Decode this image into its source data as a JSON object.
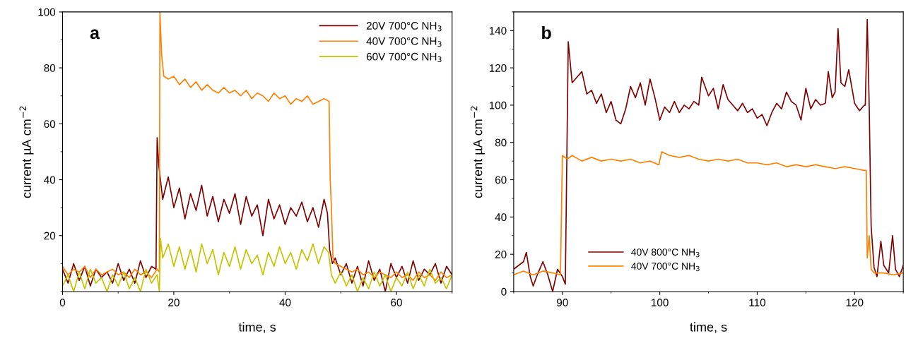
{
  "chart_data": [
    {
      "type": "line",
      "xlabel": "time, s",
      "ylabel": "current µA cm$^{−2}$",
      "annotations": [
        "a"
      ],
      "xlim": [
        0,
        70
      ],
      "xticks": [
        0,
        20,
        40,
        60
      ],
      "ylim": [
        0,
        100
      ],
      "yticks": [
        20,
        40,
        60,
        80,
        100
      ],
      "grid": false,
      "legend": "top right",
      "marker": "none",
      "line_style": "solid",
      "series": [
        {
          "name": "20V 700°C NH$_{3}$",
          "color": "#800000",
          "x": [
            0,
            1,
            2,
            3,
            4,
            5,
            6,
            7,
            8,
            9,
            10,
            11,
            12,
            13,
            14,
            15,
            16,
            16.8,
            17,
            17.3,
            17.6,
            18,
            19,
            20,
            21,
            22,
            23,
            24,
            25,
            26,
            27,
            28,
            29,
            30,
            31,
            32,
            33,
            34,
            35,
            36,
            37,
            38,
            39,
            40,
            41,
            42,
            43,
            44,
            45,
            46,
            47,
            47.6,
            48,
            48.5,
            49,
            50,
            51,
            52,
            53,
            54,
            55,
            56,
            57,
            58,
            59,
            60,
            61,
            62,
            63,
            64,
            65,
            66,
            67,
            68,
            69,
            70
          ],
          "values": [
            8,
            3,
            10,
            4,
            9,
            2,
            8,
            5,
            7,
            3,
            10,
            4,
            8,
            3,
            11,
            5,
            9,
            8,
            55,
            45,
            40,
            33,
            41,
            30,
            37,
            26,
            35,
            29,
            38,
            27,
            34,
            25,
            33,
            28,
            35,
            24,
            34,
            27,
            31,
            20,
            33,
            26,
            31,
            24,
            30,
            27,
            32,
            25,
            30,
            23,
            33,
            28,
            15,
            10,
            12,
            6,
            10,
            3,
            9,
            2,
            11,
            4,
            8,
            0,
            10,
            5,
            9,
            3,
            11,
            4,
            8,
            6,
            10,
            3,
            9,
            6
          ]
        },
        {
          "name": "40V 700°C NH$_{3}$",
          "color": "#ff8000",
          "x": [
            0,
            1,
            2,
            3,
            4,
            5,
            6,
            7,
            8,
            9,
            10,
            11,
            12,
            13,
            14,
            15,
            16,
            17,
            17.4,
            17.5,
            17.8,
            18.2,
            19,
            20,
            21,
            22,
            23,
            24,
            25,
            26,
            27,
            28,
            29,
            30,
            31,
            32,
            33,
            34,
            35,
            36,
            37,
            38,
            39,
            40,
            41,
            42,
            43,
            44,
            45,
            46,
            47,
            47.9,
            48.1,
            48.3,
            48.6,
            49,
            50,
            51,
            52,
            53,
            54,
            55,
            56,
            57,
            58,
            59,
            60,
            61,
            62,
            63,
            64,
            65,
            66,
            67,
            68,
            69,
            70
          ],
          "values": [
            9,
            6,
            8,
            7,
            9,
            5,
            8,
            6,
            7,
            8,
            6,
            7,
            5,
            8,
            6,
            7,
            5,
            8,
            7,
            100,
            85,
            77,
            76,
            77,
            74,
            76,
            73,
            75,
            72,
            74,
            72,
            71,
            73,
            71,
            72,
            70,
            72,
            69,
            71,
            70,
            68,
            71,
            69,
            70,
            67,
            69,
            68,
            70,
            67,
            68,
            69,
            68,
            40,
            31,
            12,
            10,
            9,
            8,
            7,
            8,
            6,
            7,
            5,
            7,
            6,
            5,
            7,
            5,
            6,
            4,
            7,
            5,
            6,
            4,
            7,
            5,
            6
          ]
        },
        {
          "name": "60V 700°C NH$_{3}$",
          "color": "#c3c300",
          "x": [
            0,
            1,
            2,
            3,
            4,
            5,
            6,
            7,
            8,
            9,
            10,
            11,
            12,
            13,
            14,
            15,
            16,
            17,
            17.4,
            17.6,
            18,
            19,
            20,
            21,
            22,
            23,
            24,
            25,
            26,
            27,
            28,
            29,
            30,
            31,
            32,
            33,
            34,
            35,
            36,
            37,
            38,
            39,
            40,
            41,
            42,
            43,
            44,
            45,
            46,
            47,
            47.8,
            48.3,
            49,
            50,
            51,
            52,
            53,
            54,
            55,
            56,
            57,
            58,
            59,
            60,
            61,
            62,
            63,
            64,
            65,
            66,
            67,
            68,
            69,
            70
          ],
          "values": [
            2,
            6,
            0,
            7,
            1,
            8,
            3,
            5,
            0,
            6,
            2,
            7,
            1,
            5,
            0,
            8,
            3,
            6,
            0,
            19,
            12,
            17,
            9,
            16,
            8,
            15,
            7,
            17,
            10,
            15,
            6,
            14,
            9,
            16,
            8,
            15,
            10,
            13,
            6,
            14,
            9,
            16,
            10,
            14,
            8,
            15,
            11,
            17,
            10,
            16,
            14,
            6,
            3,
            7,
            2,
            6,
            0,
            5,
            1,
            7,
            2,
            6,
            0,
            5,
            2,
            7,
            1,
            6,
            2,
            8,
            3,
            5,
            1,
            6
          ]
        }
      ]
    },
    {
      "type": "line",
      "xlabel": "time, s",
      "ylabel": "current µA cm$^{−2}$",
      "annotations": [
        "b"
      ],
      "xlim": [
        85,
        125
      ],
      "xticks": [
        90,
        100,
        110,
        120
      ],
      "ylim": [
        0,
        150
      ],
      "yticks": [
        0,
        20,
        40,
        60,
        80,
        100,
        120,
        140
      ],
      "grid": false,
      "legend": "bottom left",
      "marker": "none",
      "line_style": "solid",
      "series": [
        {
          "name": "40V 800°C NH$_{3}$",
          "color": "#800000",
          "x": [
            85,
            86,
            86.3,
            86.7,
            87,
            87.5,
            88,
            88.5,
            89,
            89.5,
            90,
            90.3,
            90.6,
            91,
            91.5,
            92,
            92.5,
            93,
            93.5,
            94,
            94.5,
            95,
            95.5,
            96,
            96.5,
            97,
            97.5,
            98,
            98.5,
            99,
            99.5,
            100,
            100.5,
            101,
            101.5,
            102,
            102.5,
            103,
            103.5,
            104,
            104.3,
            105,
            105.5,
            106,
            106.5,
            107,
            107.5,
            108,
            108.5,
            109,
            109.5,
            110,
            110.5,
            111,
            111.5,
            112,
            112.5,
            113,
            113.5,
            114,
            114.5,
            115,
            115.5,
            116,
            116.5,
            117,
            117.3,
            117.7,
            118,
            118.3,
            118.6,
            119,
            119.4,
            119.8,
            120,
            120.5,
            121,
            121.1,
            121.3,
            121.5,
            121.7,
            122,
            122.3,
            122.7,
            123,
            123.5,
            123.9,
            124.2,
            124.6,
            125
          ],
          "values": [
            12,
            16,
            21,
            8,
            3,
            10,
            16,
            9,
            0,
            12,
            8,
            4,
            134,
            112,
            115,
            118,
            106,
            108,
            101,
            106,
            96,
            102,
            92,
            90,
            98,
            110,
            104,
            112,
            100,
            114,
            104,
            92,
            99,
            96,
            102,
            96,
            100,
            98,
            102,
            100,
            115,
            105,
            109,
            98,
            111,
            103,
            100,
            97,
            101,
            96,
            98,
            93,
            95,
            89,
            96,
            101,
            98,
            107,
            102,
            100,
            92,
            109,
            98,
            103,
            100,
            101,
            118,
            104,
            107,
            141,
            112,
            110,
            119,
            107,
            101,
            97,
            100,
            100,
            146,
            100,
            35,
            13,
            8,
            27,
            14,
            10,
            30,
            12,
            8,
            14
          ]
        },
        {
          "name": "40V 700°C NH$_{3}$",
          "color": "#ff8000",
          "x": [
            85,
            86,
            87,
            88,
            89,
            89.8,
            90,
            90.5,
            91,
            92,
            93,
            94,
            95,
            96,
            97,
            98,
            99,
            99.9,
            100.2,
            101,
            102,
            103,
            104,
            105,
            106,
            107,
            108,
            109,
            110,
            111,
            112,
            113,
            114,
            115,
            116,
            117,
            118,
            119,
            120,
            121,
            121.2,
            121.3,
            121.5,
            121.7,
            122,
            123,
            124,
            125
          ],
          "values": [
            9,
            11,
            9,
            11,
            10,
            9,
            73,
            71,
            73,
            70,
            72,
            70,
            71,
            70,
            71,
            69,
            70,
            68,
            75,
            73,
            72,
            73,
            71,
            70,
            71,
            70,
            71,
            69,
            69,
            68,
            69,
            67,
            68,
            67,
            68,
            67,
            66,
            67,
            66,
            65,
            65,
            18,
            30,
            12,
            10,
            10,
            9,
            10
          ]
        }
      ]
    }
  ]
}
